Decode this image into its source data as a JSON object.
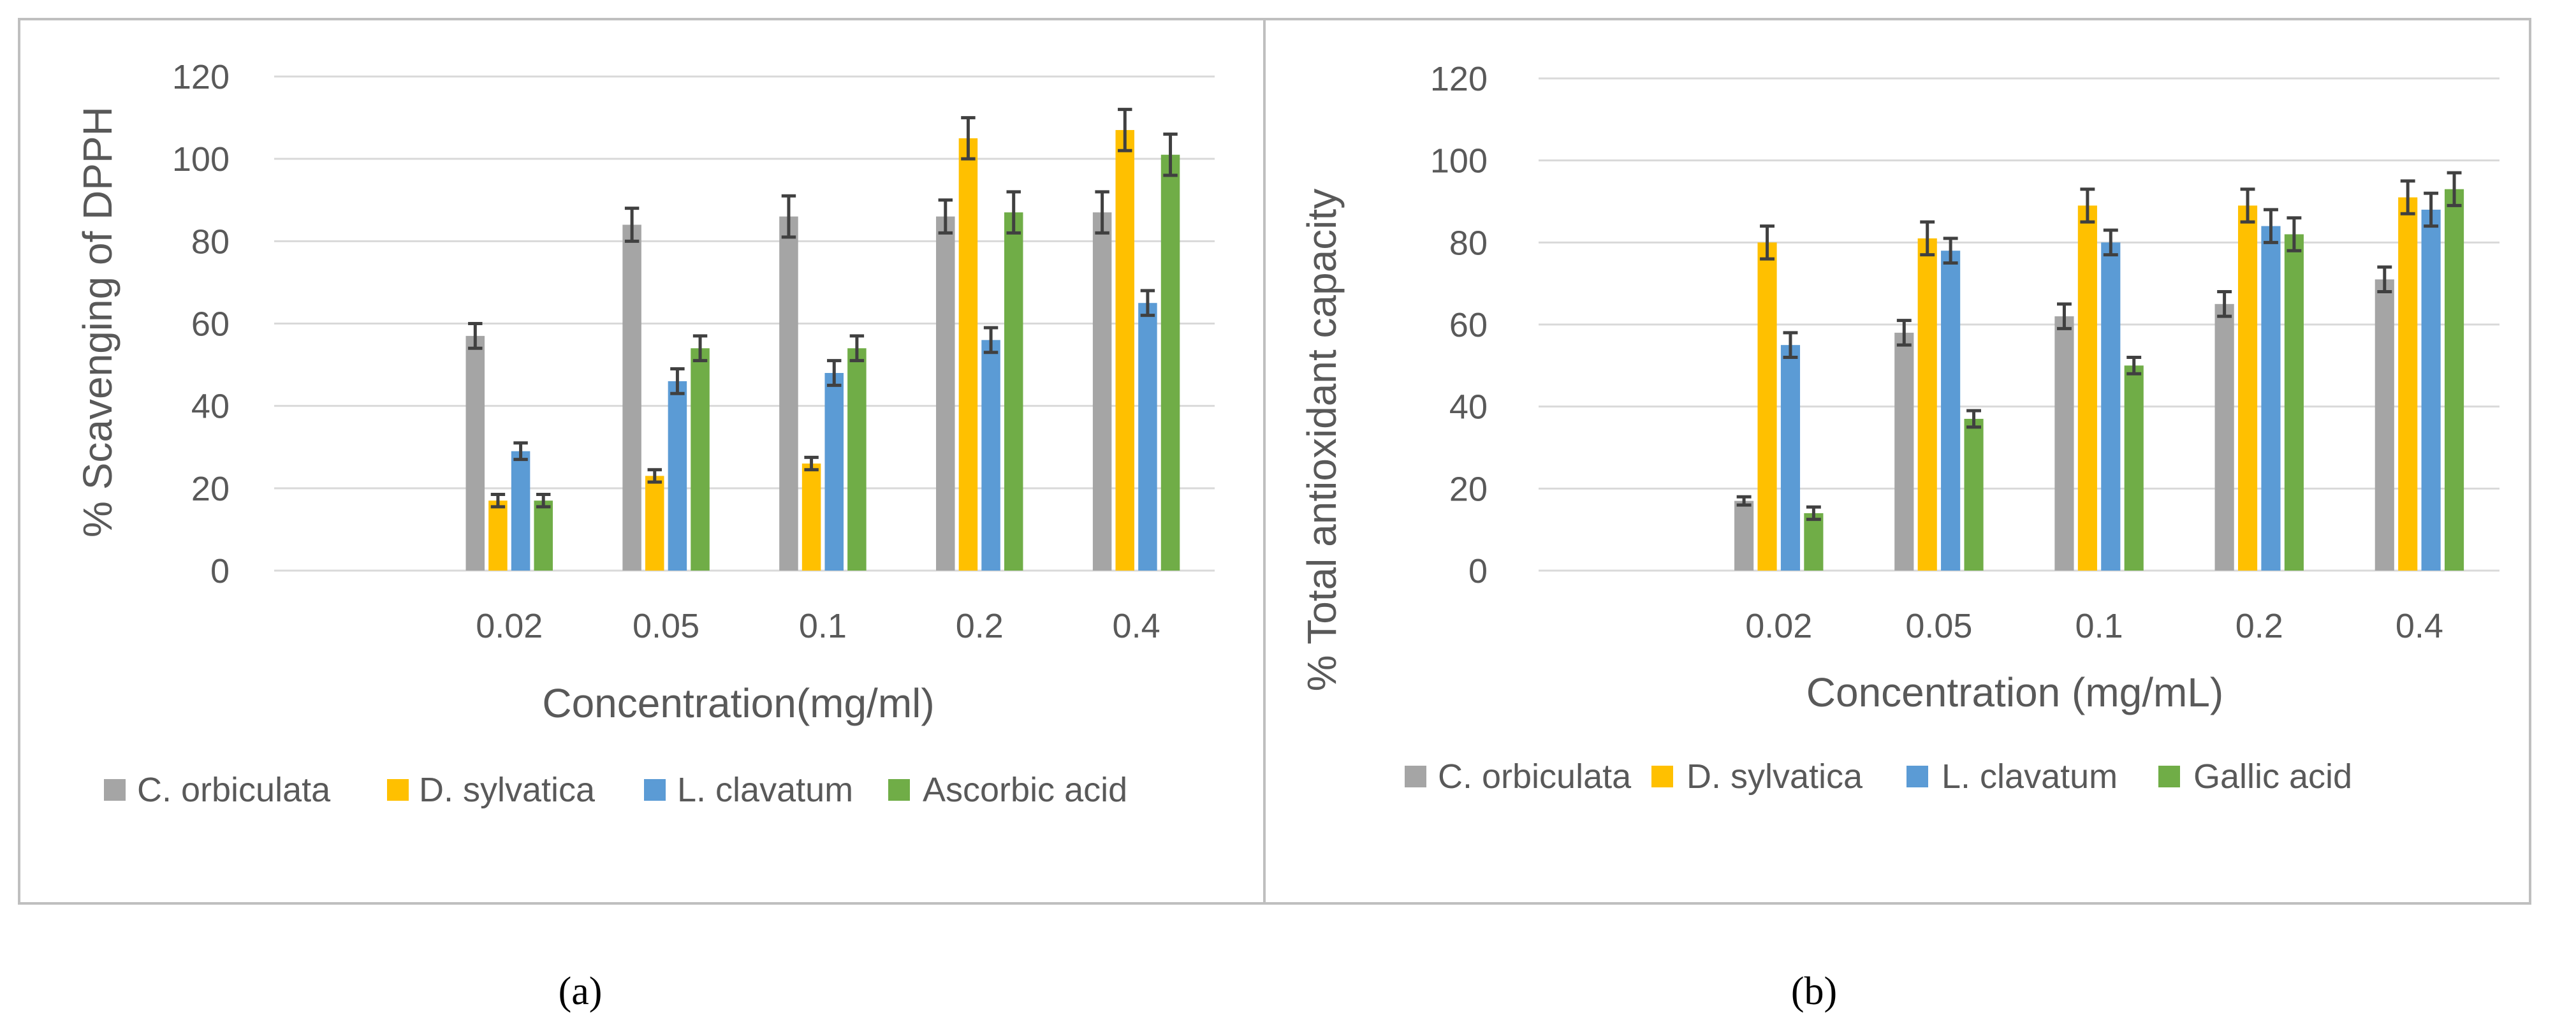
{
  "colors": {
    "C. orbiculata": "#a5a5a5",
    "D. sylvatica": "#ffc000",
    "L. clavatum": "#5b9bd5",
    "acid": "#70ad47",
    "grid": "#d9d9d9",
    "text": "#595959",
    "error_bar": "#404040",
    "border": "#bfbfbf"
  },
  "chart_data": [
    {
      "type": "bar",
      "panel_label": "(a)",
      "title": "",
      "xlabel": "Concentration(mg/ml)",
      "ylabel": "% Scavenging of DPPH",
      "ylim": [
        0,
        120
      ],
      "yticks": [
        "0",
        "20",
        "40",
        "60",
        "80",
        "100",
        "120"
      ],
      "categories": [
        "",
        "0.02",
        "0.05",
        "0.1",
        "0.2",
        "0.4"
      ],
      "legend_position": "bottom",
      "grid": true,
      "series": [
        {
          "name": "C. orbiculata",
          "color_key": "C. orbiculata",
          "values": [
            null,
            57,
            84,
            86,
            86,
            87
          ],
          "errors": [
            null,
            3,
            4,
            5,
            4,
            5
          ]
        },
        {
          "name": "D. sylvatica",
          "color_key": "D. sylvatica",
          "values": [
            null,
            17,
            23,
            26,
            105,
            107
          ],
          "errors": [
            null,
            1.5,
            1.5,
            1.5,
            5,
            5
          ]
        },
        {
          "name": "L. clavatum",
          "color_key": "L. clavatum",
          "values": [
            null,
            29,
            46,
            48,
            56,
            65
          ],
          "errors": [
            null,
            2,
            3,
            3,
            3,
            3
          ]
        },
        {
          "name": "Ascorbic acid",
          "color_key": "acid",
          "values": [
            null,
            17,
            54,
            54,
            87,
            101
          ],
          "errors": [
            null,
            1.5,
            3,
            3,
            5,
            5
          ]
        }
      ]
    },
    {
      "type": "bar",
      "panel_label": "(b)",
      "title": "",
      "xlabel": "Concentration (mg/mL)",
      "ylabel": "% Total antioxidant capacity",
      "ylim": [
        0,
        120
      ],
      "yticks": [
        "0",
        "20",
        "40",
        "60",
        "80",
        "100",
        "120"
      ],
      "categories": [
        "",
        "0.02",
        "0.05",
        "0.1",
        "0.2",
        "0.4"
      ],
      "legend_position": "bottom",
      "grid": true,
      "series": [
        {
          "name": "C. orbiculata",
          "color_key": "C. orbiculata",
          "values": [
            null,
            17,
            58,
            62,
            65,
            71
          ],
          "errors": [
            null,
            1,
            3,
            3,
            3,
            3
          ]
        },
        {
          "name": "D. sylvatica",
          "color_key": "D. sylvatica",
          "values": [
            null,
            80,
            81,
            89,
            89,
            91
          ],
          "errors": [
            null,
            4,
            4,
            4,
            4,
            4
          ]
        },
        {
          "name": "L. clavatum",
          "color_key": "L. clavatum",
          "values": [
            null,
            55,
            78,
            80,
            84,
            88
          ],
          "errors": [
            null,
            3,
            3,
            3,
            4,
            4
          ]
        },
        {
          "name": "Gallic acid",
          "color_key": "acid",
          "values": [
            null,
            14,
            37,
            50,
            82,
            93
          ],
          "errors": [
            null,
            1.5,
            2,
            2,
            4,
            4
          ]
        }
      ]
    }
  ]
}
